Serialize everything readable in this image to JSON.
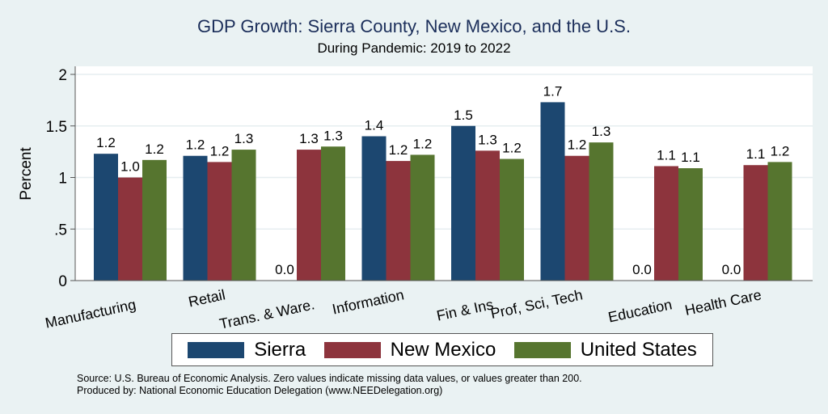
{
  "chart_data": {
    "type": "bar",
    "title": "GDP Growth: Sierra County, New Mexico, and the U.S.",
    "subtitle": "During Pandemic: 2019 to 2022",
    "xlabel": "",
    "ylabel": "Percent",
    "ylim": [
      0,
      2
    ],
    "yticks": [
      0,
      0.5,
      1,
      1.5,
      2
    ],
    "ytick_labels": [
      "0",
      ".5",
      "1",
      "1.5",
      "2"
    ],
    "grid": true,
    "legend_position": "bottom",
    "categories": [
      "Manufacturing",
      "Retail",
      "Trans. & Ware.",
      "Information",
      "Fin & Ins",
      "Prof, Sci, Tech",
      "Education",
      "Health Care"
    ],
    "series": [
      {
        "name": "Sierra",
        "color": "#1c4770",
        "values": [
          1.23,
          1.21,
          0.0,
          1.4,
          1.5,
          1.73,
          0.0,
          0.0
        ],
        "labels": [
          "1.2",
          "1.2",
          "0.0",
          "1.4",
          "1.5",
          "1.7",
          "0.0",
          "0.0"
        ]
      },
      {
        "name": "New Mexico",
        "color": "#8d343d",
        "values": [
          1.0,
          1.15,
          1.27,
          1.16,
          1.26,
          1.21,
          1.11,
          1.12
        ],
        "labels": [
          "1.0",
          "1.2",
          "1.3",
          "1.2",
          "1.3",
          "1.2",
          "1.1",
          "1.1"
        ]
      },
      {
        "name": "United States",
        "color": "#56752f",
        "values": [
          1.17,
          1.27,
          1.3,
          1.22,
          1.18,
          1.34,
          1.09,
          1.15
        ],
        "labels": [
          "1.2",
          "1.3",
          "1.3",
          "1.2",
          "1.2",
          "1.3",
          "1.1",
          "1.2"
        ]
      }
    ]
  },
  "notes": {
    "source": "Source: U.S. Bureau of Economic Analysis. Zero values indicate missing data values, or values greater than 200.",
    "produced": "Produced by: National Economic Education Delegation (www.NEEDelegation.org)"
  }
}
